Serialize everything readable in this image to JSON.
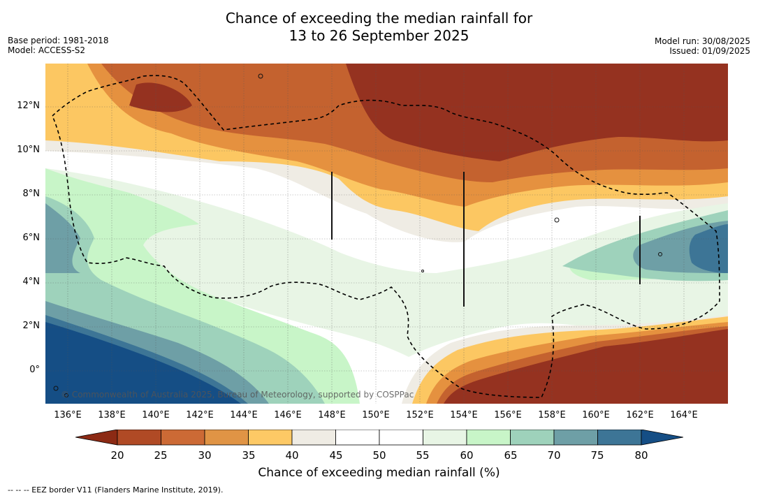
{
  "title_line1": "Chance of exceeding the median rainfall for",
  "title_line2": "13 to 26 September 2025",
  "base_period": "Base period: 1981-2018",
  "model": "Model: ACCESS-S2",
  "model_run": "Model run: 30/08/2025",
  "issued": "Issued: 01/09/2025",
  "lat_labels": [
    "12°N",
    "10°N",
    "8°N",
    "6°N",
    "4°N",
    "2°N",
    "0°"
  ],
  "lon_labels": [
    "136°E",
    "138°E",
    "140°E",
    "142°E",
    "144°E",
    "146°E",
    "148°E",
    "150°E",
    "152°E",
    "154°E",
    "156°E",
    "158°E",
    "160°E",
    "162°E",
    "164°E"
  ],
  "copyright": "© Commonwealth of Australia 2025, Bureau of Meteorology, supported by COSPPac",
  "colorbar": {
    "title": "Chance of exceeding median rainfall (%)",
    "ticks": [
      "20",
      "25",
      "30",
      "35",
      "40",
      "45",
      "50",
      "55",
      "60",
      "65",
      "70",
      "75",
      "80"
    ],
    "colors": [
      "#8c2a14",
      "#b04a25",
      "#cc6a35",
      "#e09445",
      "#fdc965",
      "#efece4",
      "#ffffff",
      "#ffffff",
      "#e8f5e5",
      "#c8f5c8",
      "#9ed2bb",
      "#6e9fa6",
      "#3d7596",
      "#154e85"
    ]
  },
  "legend": "--  --  -- EEZ border V11 (Flanders Marine Institute, 2019).",
  "map_colors": {
    "dry_deep": "#953220",
    "dry_mid": "#c4622f",
    "dry_light": "#e5913f",
    "dry_pale": "#fcc762",
    "neutral": "#efece4",
    "white": "#ffffff",
    "wet_pale": "#e8f5e5",
    "wet_light": "#c8f5c8",
    "wet_mid": "#9ed2bb",
    "wet_teal": "#6e9fa6",
    "wet_blue": "#3d7596",
    "wet_deep": "#154e85"
  }
}
